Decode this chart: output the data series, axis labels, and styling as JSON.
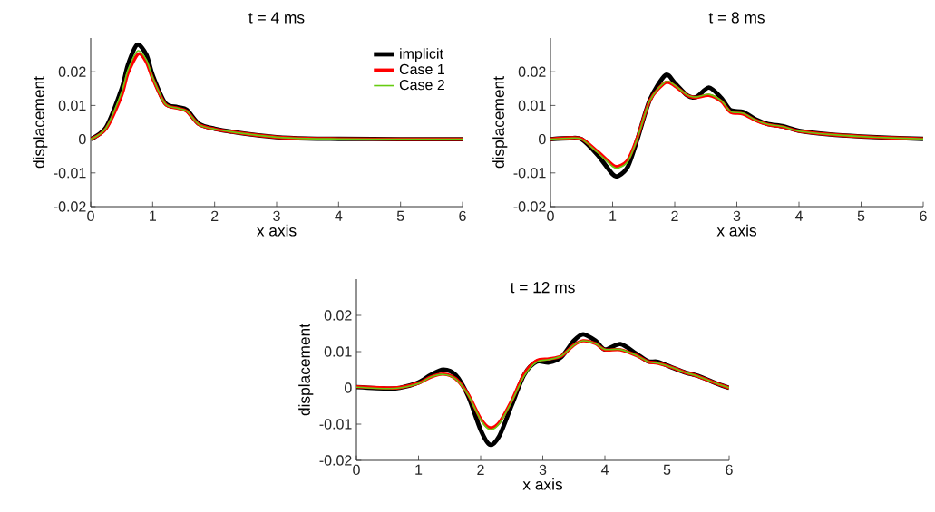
{
  "chart_data": [
    {
      "type": "line",
      "title": "t = 4 ms",
      "xlabel": "x axis",
      "ylabel": "displacement",
      "xlim": [
        0,
        6
      ],
      "ylim": [
        -0.02,
        0.03
      ],
      "xticks": [
        0,
        1,
        2,
        3,
        4,
        5,
        6
      ],
      "yticks": [
        -0.02,
        -0.01,
        0,
        0.01,
        0.02
      ],
      "legend": "top right",
      "series": [
        {
          "name": "implicit",
          "color": "#000000",
          "x": [
            0,
            0.25,
            0.5,
            0.6,
            0.75,
            0.9,
            1.0,
            1.2,
            1.4,
            1.55,
            1.75,
            2.0,
            2.5,
            3.0,
            3.5,
            4.0,
            5.0,
            6.0
          ],
          "values": [
            0,
            0.0036,
            0.015,
            0.022,
            0.028,
            0.025,
            0.019,
            0.0108,
            0.0095,
            0.0087,
            0.0045,
            0.0031,
            0.0016,
            0.0006,
            0.0002,
            0.0001,
            0,
            0
          ]
        },
        {
          "name": "Case 1",
          "color": "#ff0000",
          "x": [
            0,
            0.25,
            0.5,
            0.6,
            0.77,
            0.9,
            1.0,
            1.2,
            1.4,
            1.55,
            1.75,
            2.0,
            2.5,
            3.0,
            3.5,
            4.0,
            5.0,
            6.0
          ],
          "values": [
            0,
            0.0032,
            0.013,
            0.0195,
            0.0253,
            0.0228,
            0.018,
            0.0105,
            0.0092,
            0.0083,
            0.0043,
            0.003,
            0.0016,
            0.0006,
            0.0002,
            0.0001,
            0,
            0
          ]
        },
        {
          "name": "Case 2",
          "color": "#66cc11",
          "x": [
            0,
            0.25,
            0.5,
            0.6,
            0.76,
            0.9,
            1.0,
            1.2,
            1.4,
            1.55,
            1.75,
            2.0,
            2.5,
            3.0,
            3.5,
            4.0,
            5.0,
            6.0
          ],
          "values": [
            0,
            0.0034,
            0.014,
            0.0205,
            0.0262,
            0.0235,
            0.0183,
            0.0105,
            0.0092,
            0.0083,
            0.0043,
            0.003,
            0.0016,
            0.0006,
            0.0002,
            0.0001,
            0,
            0
          ]
        }
      ]
    },
    {
      "type": "line",
      "title": "t = 8 ms",
      "xlabel": "x axis",
      "ylabel": "displacement",
      "xlim": [
        0,
        6
      ],
      "ylim": [
        -0.02,
        0.03
      ],
      "xticks": [
        0,
        1,
        2,
        3,
        4,
        5,
        6
      ],
      "yticks": [
        -0.02,
        -0.01,
        0,
        0.01,
        0.02
      ],
      "series": [
        {
          "color": "#000000",
          "x": [
            0,
            0.3,
            0.5,
            0.75,
            1.0,
            1.1,
            1.25,
            1.4,
            1.6,
            1.85,
            2.0,
            2.2,
            2.35,
            2.55,
            2.75,
            2.9,
            3.1,
            3.3,
            3.5,
            3.75,
            4.0,
            4.5,
            5.0,
            5.5,
            6.0
          ],
          "values": [
            0,
            0.0003,
            0,
            -0.0045,
            -0.0104,
            -0.0108,
            -0.008,
            0,
            0.0117,
            0.019,
            0.0167,
            0.013,
            0.0125,
            0.0153,
            0.0122,
            0.0086,
            0.0081,
            0.0059,
            0.0045,
            0.0038,
            0.0025,
            0.0014,
            0.0008,
            0.0004,
            0.0001
          ]
        },
        {
          "color": "#ff0000",
          "x": [
            0,
            0.3,
            0.5,
            0.75,
            1.0,
            1.1,
            1.25,
            1.4,
            1.6,
            1.85,
            2.0,
            2.2,
            2.35,
            2.55,
            2.75,
            2.9,
            3.1,
            3.3,
            3.5,
            3.75,
            4.0,
            4.5,
            5.0,
            5.5,
            6.0
          ],
          "values": [
            0,
            0.0004,
            0.0001,
            -0.0035,
            -0.0076,
            -0.008,
            -0.006,
            0.0005,
            0.0115,
            0.0168,
            0.0158,
            0.013,
            0.0124,
            0.013,
            0.0112,
            0.008,
            0.0075,
            0.0056,
            0.0043,
            0.0036,
            0.0024,
            0.0014,
            0.0008,
            0.0004,
            0.0001
          ]
        },
        {
          "color": "#66cc11",
          "x": [
            0,
            0.3,
            0.5,
            0.75,
            1.0,
            1.1,
            1.25,
            1.4,
            1.6,
            1.85,
            2.0,
            2.2,
            2.35,
            2.55,
            2.75,
            2.9,
            3.1,
            3.3,
            3.5,
            3.75,
            4.0,
            4.5,
            5.0,
            5.5,
            6.0
          ],
          "values": [
            0,
            0.0003,
            0,
            -0.0038,
            -0.0081,
            -0.0085,
            -0.0065,
            0.0003,
            0.0115,
            0.017,
            0.016,
            0.0131,
            0.0125,
            0.0133,
            0.0114,
            0.0082,
            0.0077,
            0.0057,
            0.0044,
            0.0037,
            0.0024,
            0.0014,
            0.0008,
            0.0004,
            0.0001
          ]
        }
      ]
    },
    {
      "type": "line",
      "title": "t = 12 ms",
      "xlabel": "x axis",
      "ylabel": "displacement",
      "xlim": [
        0,
        6
      ],
      "ylim": [
        -0.02,
        0.03
      ],
      "xticks": [
        0,
        1,
        2,
        3,
        4,
        5,
        6
      ],
      "yticks": [
        -0.02,
        -0.01,
        0,
        0.01,
        0.02
      ],
      "series": [
        {
          "color": "#000000",
          "x": [
            0,
            0.5,
            0.7,
            1.0,
            1.2,
            1.4,
            1.6,
            1.8,
            2.0,
            2.15,
            2.3,
            2.5,
            2.7,
            2.9,
            3.1,
            3.3,
            3.5,
            3.65,
            3.85,
            4.0,
            4.25,
            4.5,
            4.7,
            4.85,
            5.1,
            5.3,
            5.5,
            5.8,
            6.0
          ],
          "values": [
            0.0002,
            -0.0002,
            0,
            0.0015,
            0.0036,
            0.005,
            0.0035,
            -0.0023,
            -0.0116,
            -0.0157,
            -0.0133,
            -0.0048,
            0.0036,
            0.0072,
            0.007,
            0.0085,
            0.013,
            0.0148,
            0.013,
            0.0106,
            0.0121,
            0.0095,
            0.0073,
            0.0072,
            0.0055,
            0.0042,
            0.0033,
            0.0012,
            0
          ]
        },
        {
          "color": "#ff0000",
          "x": [
            0,
            0.5,
            0.7,
            1.0,
            1.2,
            1.4,
            1.6,
            1.8,
            2.0,
            2.15,
            2.3,
            2.5,
            2.7,
            2.9,
            3.1,
            3.3,
            3.5,
            3.65,
            3.85,
            4.0,
            4.25,
            4.5,
            4.7,
            4.85,
            5.1,
            5.3,
            5.5,
            5.8,
            6.0
          ],
          "values": [
            0.0003,
            0,
            0.0001,
            0.0013,
            0.003,
            0.0038,
            0.0025,
            -0.0018,
            -0.0085,
            -0.011,
            -0.0095,
            -0.0035,
            0.0038,
            0.0075,
            0.008,
            0.0088,
            0.0118,
            0.013,
            0.0122,
            0.0105,
            0.0105,
            0.009,
            0.0072,
            0.0068,
            0.0055,
            0.0042,
            0.0032,
            0.0012,
            0
          ]
        },
        {
          "color": "#66cc11",
          "x": [
            0,
            0.5,
            0.7,
            1.0,
            1.2,
            1.4,
            1.6,
            1.8,
            2.0,
            2.15,
            2.3,
            2.5,
            2.7,
            2.9,
            3.1,
            3.3,
            3.5,
            3.65,
            3.85,
            4.0,
            4.25,
            4.5,
            4.7,
            4.85,
            5.1,
            5.3,
            5.5,
            5.8,
            6.0
          ],
          "values": [
            0.0002,
            -0.0002,
            0,
            0.0012,
            0.003,
            0.0037,
            0.0024,
            -0.002,
            -0.0088,
            -0.0115,
            -0.0099,
            -0.0038,
            0.0033,
            0.0071,
            0.0078,
            0.0088,
            0.0118,
            0.013,
            0.0122,
            0.0106,
            0.0106,
            0.009,
            0.0072,
            0.0068,
            0.0055,
            0.0042,
            0.0032,
            0.0012,
            0
          ]
        }
      ]
    }
  ]
}
